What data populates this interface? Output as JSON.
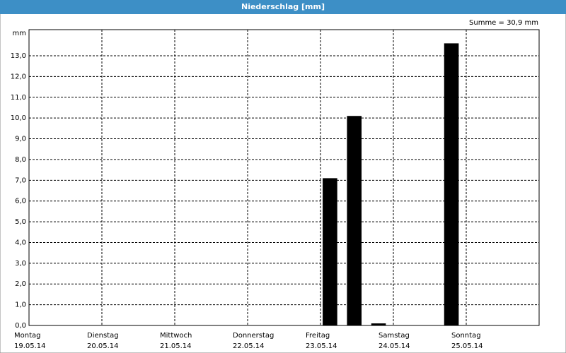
{
  "chart_data": {
    "type": "bar",
    "title": "Niederschlag [mm]",
    "annotation": "Summe = 30,9 mm",
    "y_label": "mm",
    "x": [
      96,
      104,
      112,
      136
    ],
    "values": [
      7.1,
      10.1,
      0.1,
      13.6
    ],
    "color": "#000000",
    "xlim": [
      0,
      168
    ],
    "xticks": [
      {
        "value": 0,
        "label": "Montag"
      },
      {
        "value": 24,
        "label": "Dienstag"
      },
      {
        "value": 48,
        "label": "Mittwoch"
      },
      {
        "value": 72,
        "label": "Donnerstag"
      },
      {
        "value": 96,
        "label": "Freitag"
      },
      {
        "value": 120,
        "label": "Samstag"
      },
      {
        "value": 144,
        "label": "Sonntag"
      }
    ],
    "xtick_dates": [
      "19.05.14",
      "20.05.14",
      "21.05.14",
      "22.05.14",
      "23.05.14",
      "24.05.14",
      "25.05.14"
    ],
    "ylim": [
      0,
      14.26
    ],
    "yticks": [
      {
        "value": 0,
        "label": "0,0"
      },
      {
        "value": 1,
        "label": "1,0"
      },
      {
        "value": 2,
        "label": "2,0"
      },
      {
        "value": 3,
        "label": "3,0"
      },
      {
        "value": 4,
        "label": "4,0"
      },
      {
        "value": 5,
        "label": "5,0"
      },
      {
        "value": 6,
        "label": "6,0"
      },
      {
        "value": 7,
        "label": "7,0"
      },
      {
        "value": 8,
        "label": "8,0"
      },
      {
        "value": 9,
        "label": "9,0"
      },
      {
        "value": 10,
        "label": "10,0"
      },
      {
        "value": 11,
        "label": "11,0"
      },
      {
        "value": 12,
        "label": "12,0"
      },
      {
        "value": 13,
        "label": "13,0"
      }
    ],
    "grid": true
  }
}
